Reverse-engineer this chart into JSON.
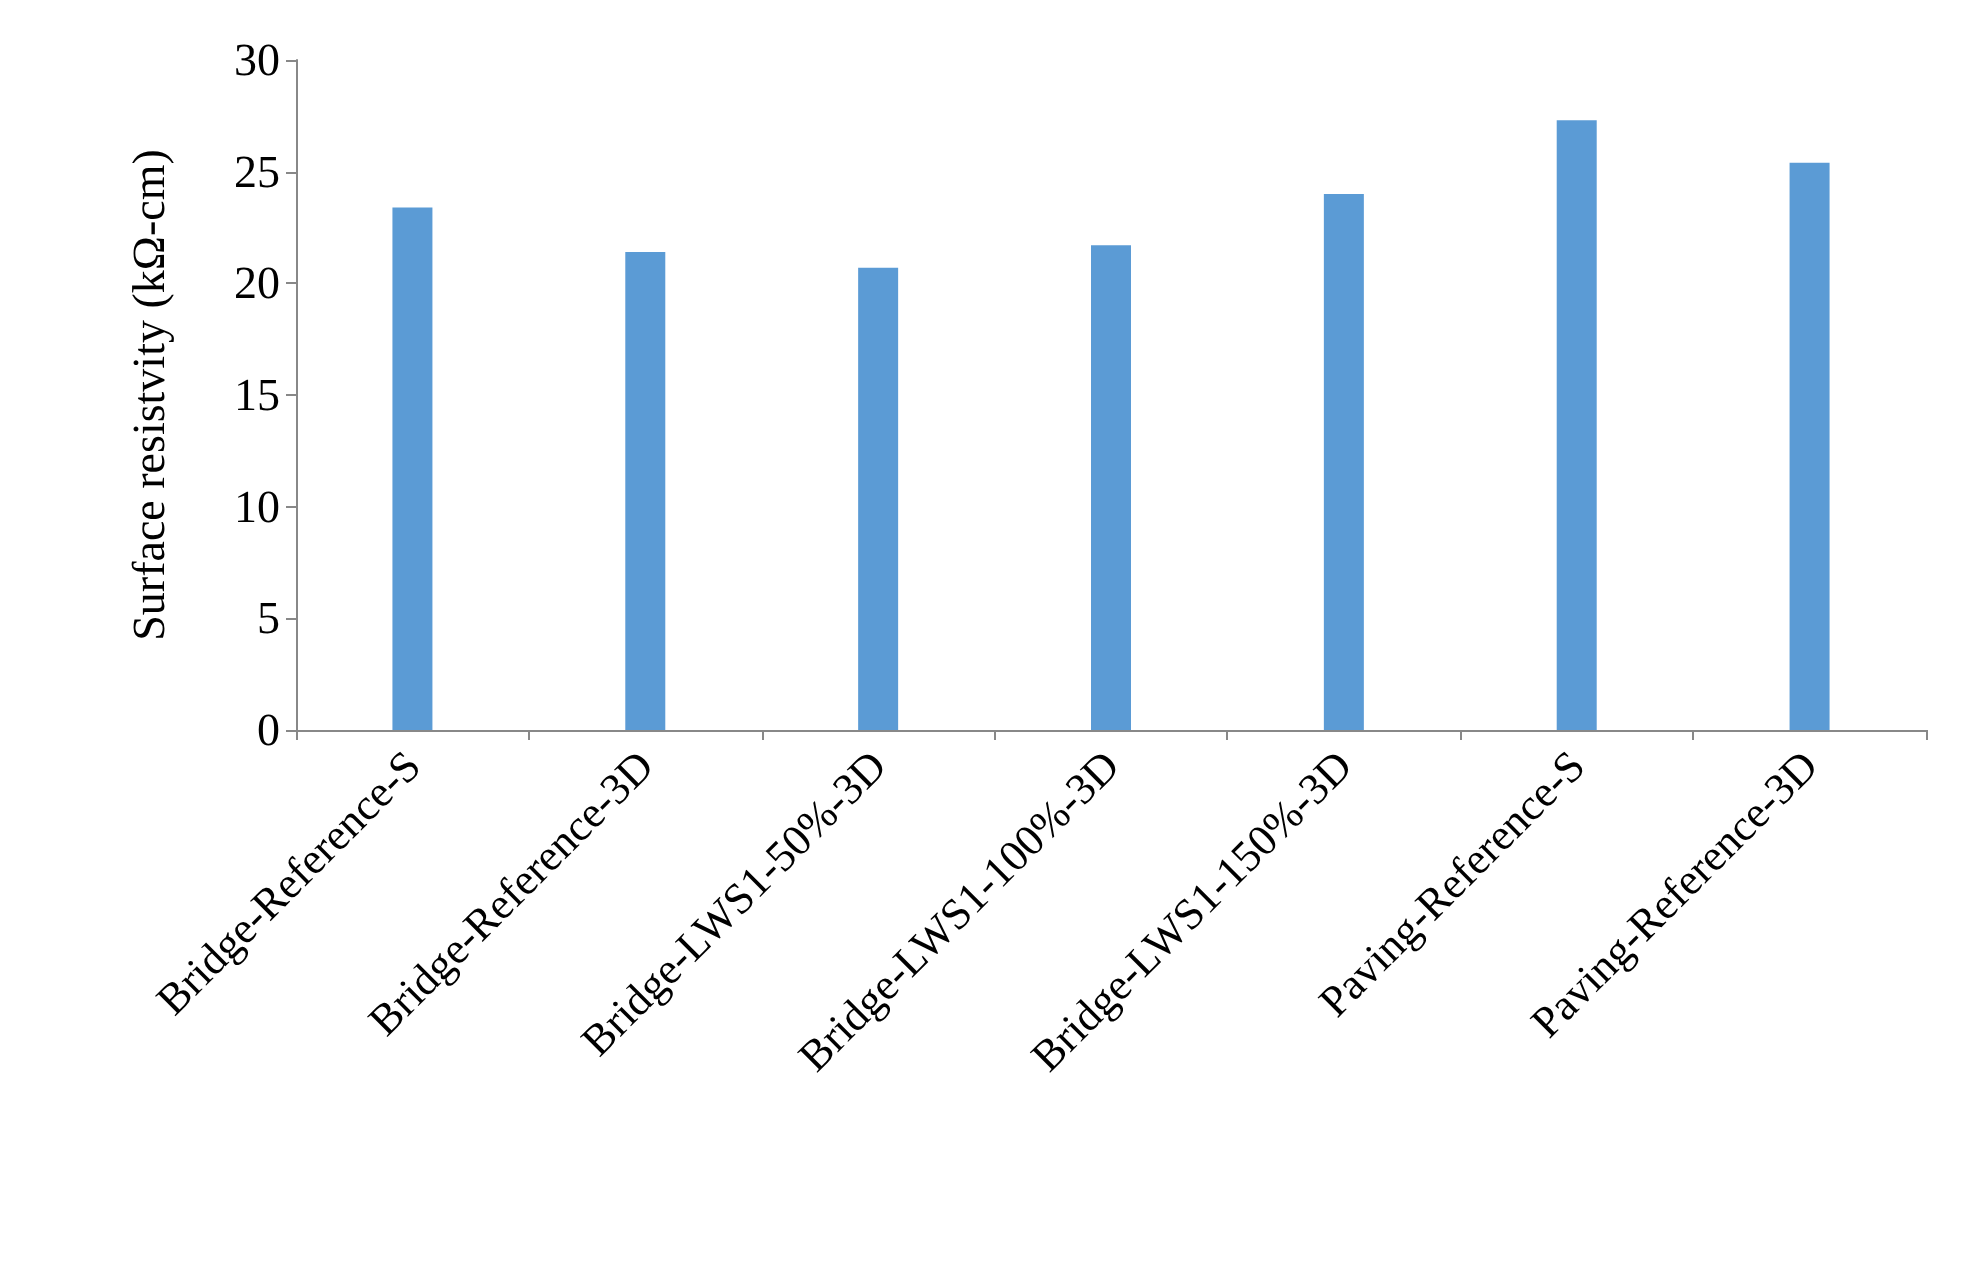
{
  "chart_data": {
    "type": "bar",
    "ylabel": "Surface resistvity (kΩ-cm)",
    "categories": [
      "Bridge-Reference-S",
      "Bridge-Reference-3D",
      "Bridge-LWS1-50%-3D",
      "Bridge-LWS1-100%-3D",
      "Bridge-LWS1-150%-3D",
      "Paving-Reference-S",
      "Paving-Reference-3D"
    ],
    "values": [
      23.4,
      21.4,
      20.7,
      21.7,
      24.0,
      27.3,
      25.4
    ],
    "color": "#5b9bd5",
    "ylim": [
      0,
      30
    ],
    "yticks": [
      0,
      5,
      10,
      15,
      20,
      25,
      30
    ],
    "grid": false
  }
}
